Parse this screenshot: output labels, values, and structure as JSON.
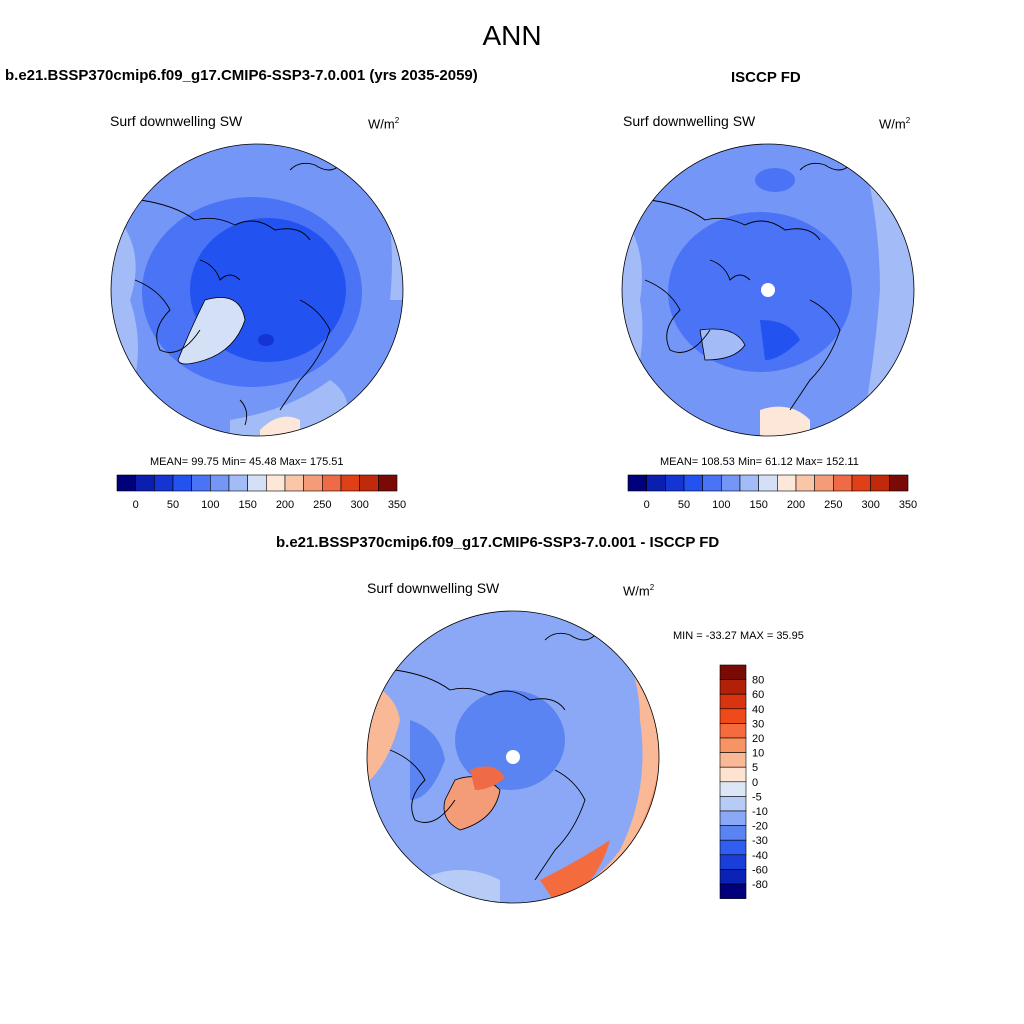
{
  "title": "ANN",
  "field_label": "Surf downwelling SW",
  "units": {
    "base": "W/m",
    "exp": "2"
  },
  "panels": [
    {
      "title": "b.e21.BSSP370cmip6.f09_g17.CMIP6-SSP3-7.0.001 (yrs 2035-2059)",
      "stats": "MEAN=  99.75  Min=  45.48  Max= 175.51"
    },
    {
      "title": "ISCCP FD",
      "stats": "MEAN= 108.53  Min=  61.12  Max= 152.11"
    }
  ],
  "abs_colorbar": {
    "colors": [
      "#00007a",
      "#0a1fb0",
      "#1434d4",
      "#2252f0",
      "#4a73f5",
      "#7496f7",
      "#a3bbf6",
      "#d3e0f5",
      "#fde7d8",
      "#f9c6a8",
      "#f49b77",
      "#ee6b45",
      "#e04018",
      "#c02a0b",
      "#7a0a05"
    ],
    "labels": [
      "0",
      "50",
      "100",
      "150",
      "200",
      "250",
      "300",
      "350"
    ]
  },
  "diff": {
    "title": "b.e21.BSSP370cmip6.f09_g17.CMIP6-SSP3-7.0.001 - ISCCP FD",
    "stats": "MIN = -33.27 MAX =  35.95",
    "colors": [
      "#7a0a05",
      "#b32008",
      "#d9330f",
      "#ee4a1a",
      "#f46b3d",
      "#f79466",
      "#f9b896",
      "#fde3d0",
      "#dbe6f6",
      "#b6ccf6",
      "#8aa8f5",
      "#5b84f3",
      "#2f5ef0",
      "#1a3fd8",
      "#0a22b5",
      "#02007a"
    ],
    "labels": [
      "80",
      "60",
      "40",
      "30",
      "20",
      "10",
      "5",
      "0",
      "-5",
      "-10",
      "-20",
      "-30",
      "-40",
      "-60",
      "-80"
    ]
  }
}
